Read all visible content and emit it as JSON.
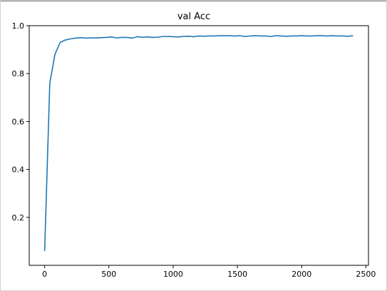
{
  "chart_data": {
    "type": "line",
    "title": "val Acc",
    "xlabel": "",
    "ylabel": "",
    "xlim": [
      -120,
      2520
    ],
    "ylim": [
      0.0,
      1.0
    ],
    "xticks": [
      0,
      500,
      1000,
      1500,
      2000,
      2500
    ],
    "yticks": [
      0.2,
      0.4,
      0.6,
      0.8,
      1.0
    ],
    "xtick_labels": [
      "0",
      "500",
      "1000",
      "1500",
      "2000",
      "2500"
    ],
    "ytick_labels": [
      "0.2",
      "0.4",
      "0.6",
      "0.8",
      "1.0"
    ],
    "grid": false,
    "series": [
      {
        "color": "#1f77b4",
        "x": [
          0,
          40,
          80,
          120,
          160,
          200,
          240,
          280,
          320,
          360,
          400,
          440,
          480,
          520,
          560,
          600,
          640,
          680,
          720,
          760,
          800,
          840,
          880,
          920,
          960,
          1000,
          1040,
          1080,
          1120,
          1160,
          1200,
          1240,
          1280,
          1320,
          1360,
          1400,
          1440,
          1480,
          1520,
          1560,
          1600,
          1640,
          1680,
          1720,
          1760,
          1800,
          1840,
          1880,
          1920,
          1960,
          2000,
          2040,
          2080,
          2120,
          2160,
          2200,
          2240,
          2280,
          2320,
          2360,
          2400
        ],
        "y": [
          0.06,
          0.76,
          0.88,
          0.93,
          0.94,
          0.945,
          0.948,
          0.95,
          0.948,
          0.949,
          0.949,
          0.95,
          0.951,
          0.953,
          0.949,
          0.951,
          0.951,
          0.948,
          0.954,
          0.952,
          0.953,
          0.951,
          0.952,
          0.955,
          0.955,
          0.954,
          0.953,
          0.955,
          0.956,
          0.954,
          0.957,
          0.956,
          0.957,
          0.957,
          0.958,
          0.958,
          0.958,
          0.957,
          0.958,
          0.955,
          0.957,
          0.958,
          0.957,
          0.957,
          0.955,
          0.958,
          0.957,
          0.956,
          0.957,
          0.957,
          0.958,
          0.957,
          0.957,
          0.958,
          0.958,
          0.957,
          0.958,
          0.957,
          0.957,
          0.956,
          0.958
        ]
      }
    ]
  }
}
